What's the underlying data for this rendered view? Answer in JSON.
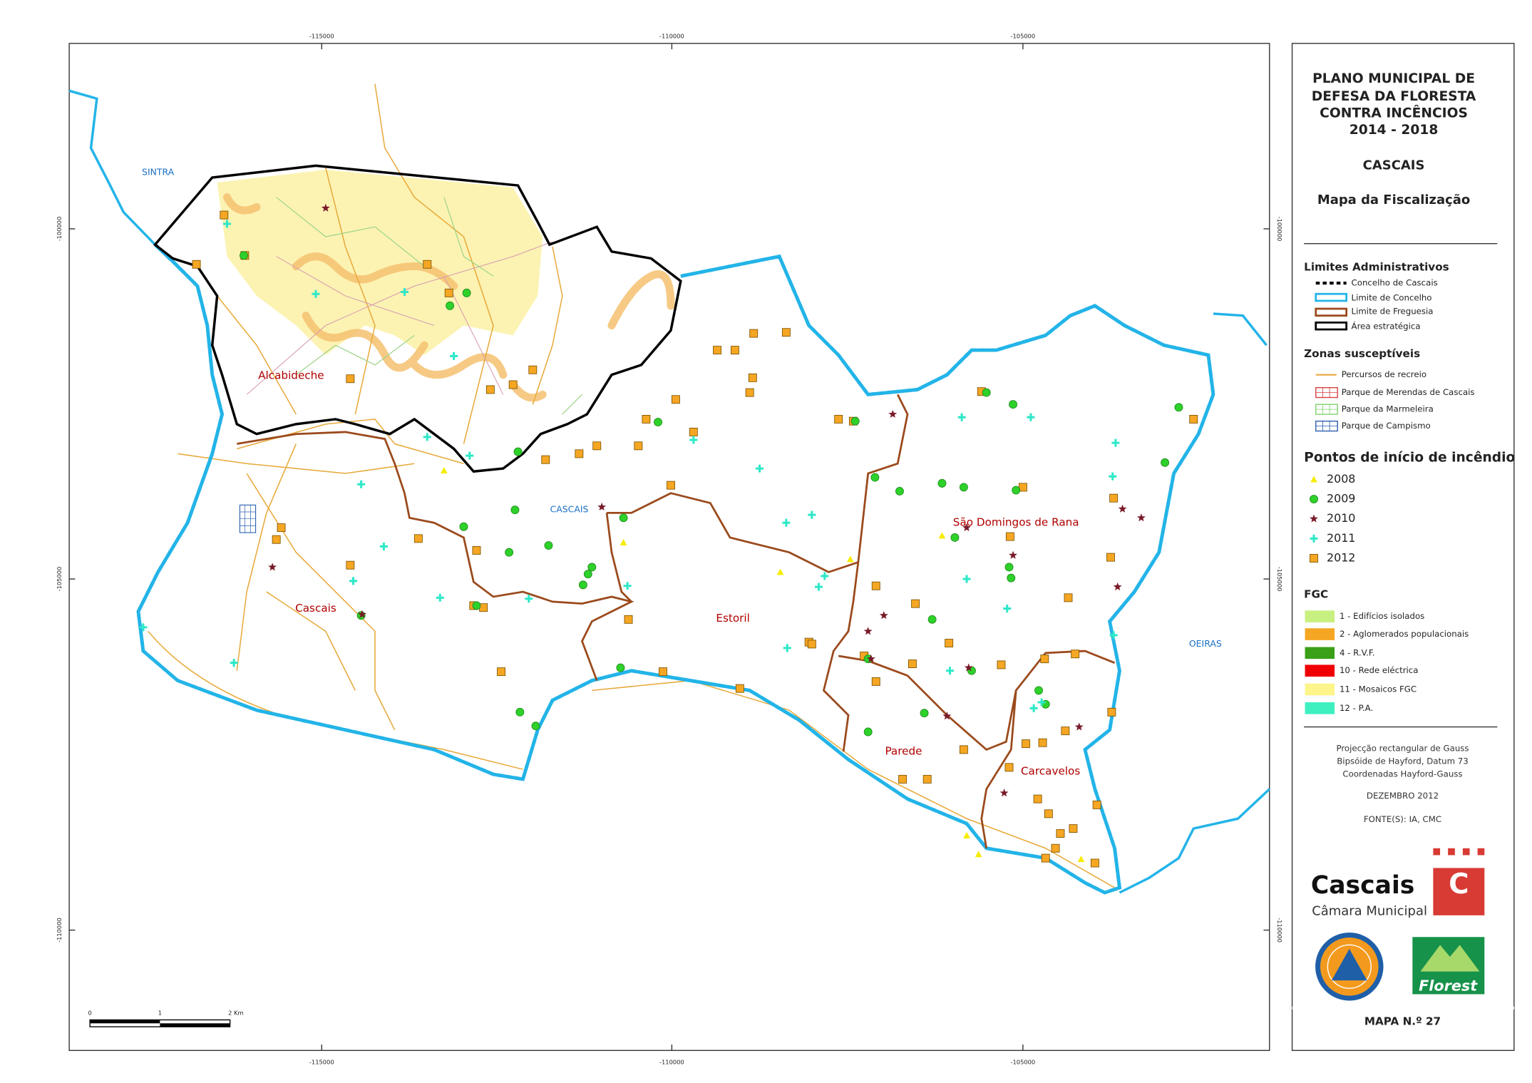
{
  "map": {
    "place_labels": {
      "sintra": "SINTRA",
      "oeiras": "OEIRAS",
      "cascais_municipality": "CASCAIS",
      "alcabideche": "Alcabideche",
      "cascais": "Cascais",
      "estoril": "Estoril",
      "sao_domingos": "São Domingos de Rana",
      "parede": "Parede",
      "carcavelos": "Carcavelos"
    },
    "grid_labels": {
      "top": [
        "-115000",
        "-110000",
        "-105000"
      ],
      "bottom": [
        "-115000",
        "-110000",
        "-105000"
      ],
      "left": [
        "-100000",
        "-105000",
        "-110000"
      ],
      "right": [
        "-100000",
        "-105000",
        "-110000"
      ]
    },
    "scale_bar": [
      "0",
      "1",
      "2 Km"
    ]
  },
  "panel": {
    "title": [
      "PLANO MUNICIPAL DE",
      "DEFESA DA FLORESTA",
      "CONTRA INCÊNCIOS",
      "2014 - 2018"
    ],
    "municipality": "CASCAIS",
    "subtitle": "Mapa da Fiscalização",
    "legend": {
      "admin": {
        "heading": "Limites Administrativos",
        "items": [
          "Concelho de Cascais",
          "Limite de Concelho",
          "Limite de Freguesia",
          "Área estratégica"
        ]
      },
      "zones": {
        "heading": "Zonas susceptíveis",
        "items": [
          "Percursos de recreio",
          "Parque de Merendas de Cascais",
          "Parque da Marmeleira",
          "Parque de Campismo"
        ]
      },
      "fire_points": {
        "heading": "Pontos de início de incêndio",
        "items": [
          "2008",
          "2009",
          "2010",
          "2011",
          "2012"
        ]
      },
      "fgc": {
        "heading": "FGC",
        "items": [
          "1 - Edifícios isolados",
          "2 - Aglomerados populacionais",
          "4 - R.V.F.",
          "10 - Rede eléctrica",
          "11 - Mosaicos FGC",
          "12 - P.A."
        ]
      }
    },
    "notes": [
      "Projecção rectangular de Gauss",
      "Bipsóide de Hayford, Datum 73",
      "Coordenadas Hayford-Gauss"
    ],
    "date": "DEZEMBRO 2012",
    "source": "FONTE(S): IA, CMC",
    "logos": {
      "cascais": "Cascais",
      "camara": "Câmara Municipal",
      "c": "C",
      "florest": "Florest"
    },
    "map_number": "MAPA N.º 27"
  }
}
